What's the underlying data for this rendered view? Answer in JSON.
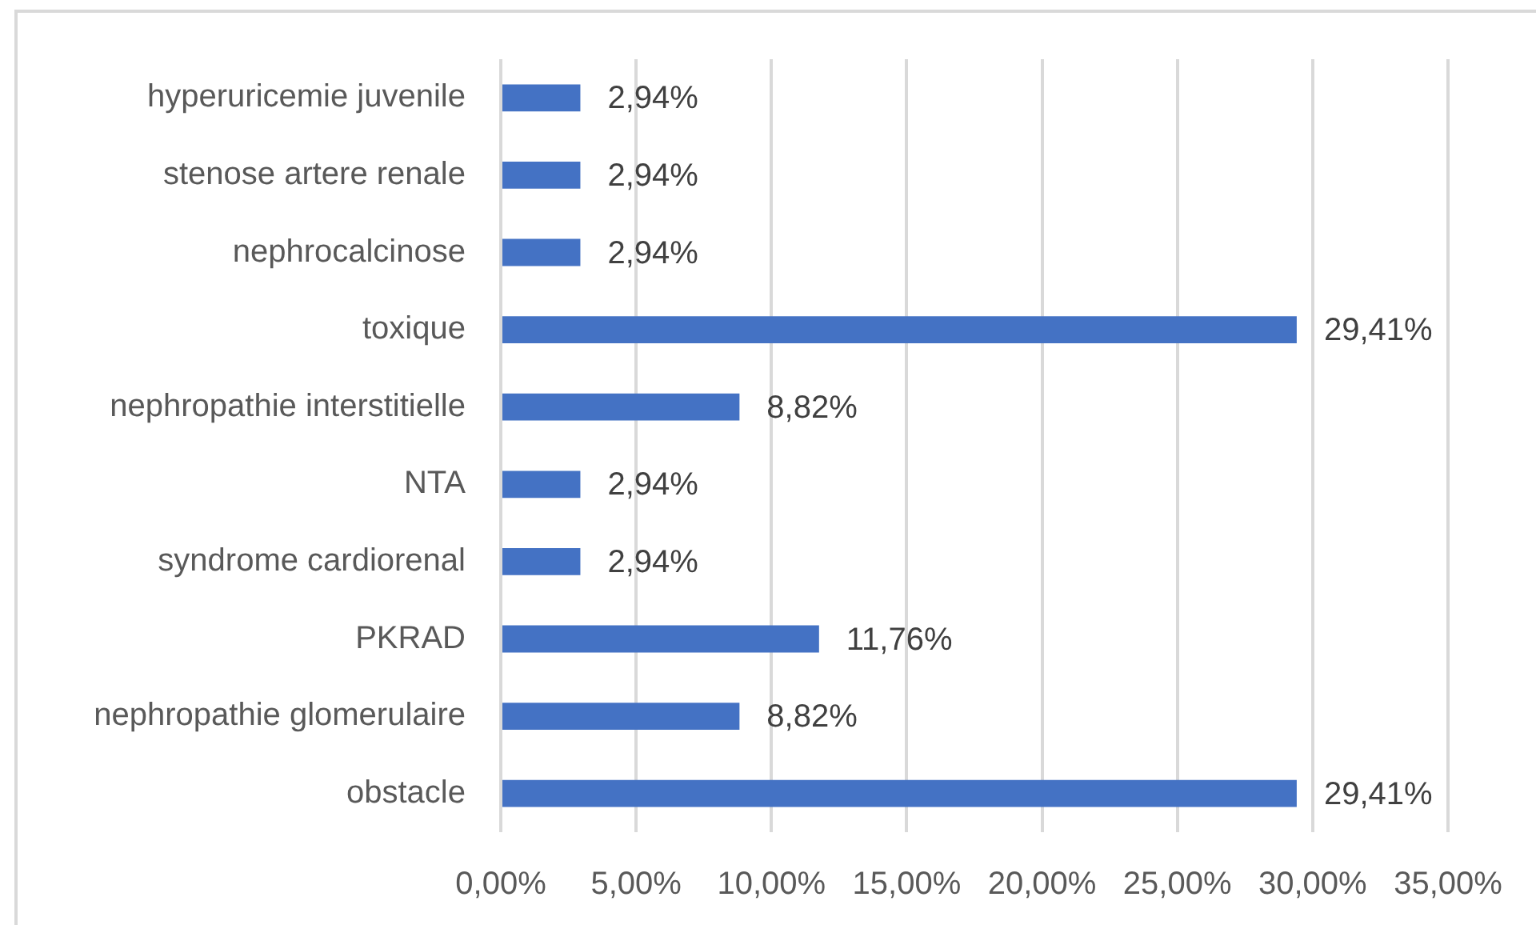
{
  "chart_data": {
    "type": "bar",
    "orientation": "horizontal",
    "categories": [
      "hyperuricemie juvenile",
      "stenose artere renale",
      "nephrocalcinose",
      "toxique",
      "nephropathie interstitielle",
      "NTA",
      "syndrome cardiorenal",
      "PKRAD",
      "nephropathie glomerulaire",
      "obstacle"
    ],
    "values": [
      2.94,
      2.94,
      2.94,
      29.41,
      8.82,
      2.94,
      2.94,
      11.76,
      8.82,
      29.41
    ],
    "color": "#4472c4",
    "value_labels": [
      "2,94%",
      "2,94%",
      "2,94%",
      "29,41%",
      "8,82%",
      "2,94%",
      "2,94%",
      "11,76%",
      "8,82%",
      "29,41%"
    ],
    "xlim": [
      0,
      35
    ],
    "xticks": [
      {
        "value": 0,
        "label": "0,00%"
      },
      {
        "value": 5,
        "label": "5,00%"
      },
      {
        "value": 10,
        "label": "10,00%"
      },
      {
        "value": 15,
        "label": "15,00%"
      },
      {
        "value": 20,
        "label": "20,00%"
      },
      {
        "value": 25,
        "label": "25,00%"
      },
      {
        "value": 30,
        "label": "30,00%"
      },
      {
        "value": 35,
        "label": "35,00%"
      }
    ],
    "grid": "x"
  }
}
